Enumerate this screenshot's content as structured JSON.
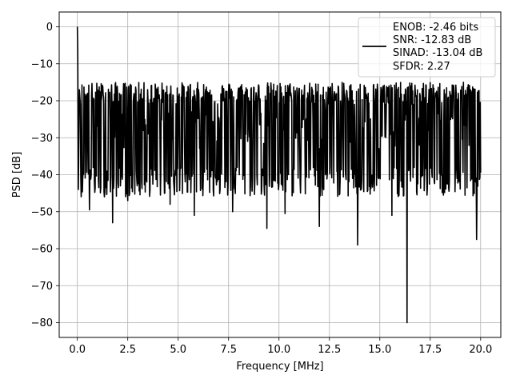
{
  "chart_data": {
    "type": "line",
    "title": "",
    "xlabel": "Frequency [MHz]",
    "ylabel": "PSD [dB]",
    "xlim": [
      -0.9,
      21.0
    ],
    "ylim": [
      -84.0,
      4.0
    ],
    "xticks": [
      0.0,
      2.5,
      5.0,
      7.5,
      10.0,
      12.5,
      15.0,
      17.5,
      20.0
    ],
    "xtick_labels": [
      "0.0",
      "2.5",
      "5.0",
      "7.5",
      "10.0",
      "12.5",
      "15.0",
      "17.5",
      "20.0"
    ],
    "yticks": [
      0,
      -10,
      -20,
      -30,
      -40,
      -50,
      -60,
      -70,
      -80
    ],
    "ytick_labels": [
      "0",
      "−10",
      "−20",
      "−30",
      "−40",
      "−50",
      "−60",
      "−70",
      "−80"
    ],
    "grid": true,
    "legend_position": "top-right",
    "legend": {
      "lines": [
        "ENOB: -2.46 bits",
        "SNR: -12.83 dB",
        "SINAD: -13.04 dB",
        "SFDR: 2.27"
      ]
    },
    "series": [
      {
        "color": "#000000",
        "x_range": [
          0.0,
          20.0
        ],
        "points": 1000,
        "noise_floor_db": -28,
        "noise_upper_db": -18,
        "start_peak": [
          [
            0.0,
            0.0
          ],
          [
            0.02,
            -6.0
          ],
          [
            0.05,
            -12.0
          ],
          [
            0.1,
            -17.0
          ],
          [
            0.15,
            -21.0
          ]
        ],
        "dips": [
          [
            0.05,
            -44.0
          ],
          [
            0.6,
            -49.5
          ],
          [
            1.75,
            -53.0
          ],
          [
            2.5,
            -47.0
          ],
          [
            4.6,
            -48.0
          ],
          [
            5.8,
            -51.0
          ],
          [
            7.7,
            -50.0
          ],
          [
            9.4,
            -54.5
          ],
          [
            10.3,
            -50.5
          ],
          [
            12.0,
            -54.0
          ],
          [
            13.9,
            -59.0
          ],
          [
            15.6,
            -51.0
          ],
          [
            16.35,
            -80.0
          ],
          [
            19.8,
            -57.5
          ]
        ]
      }
    ]
  }
}
